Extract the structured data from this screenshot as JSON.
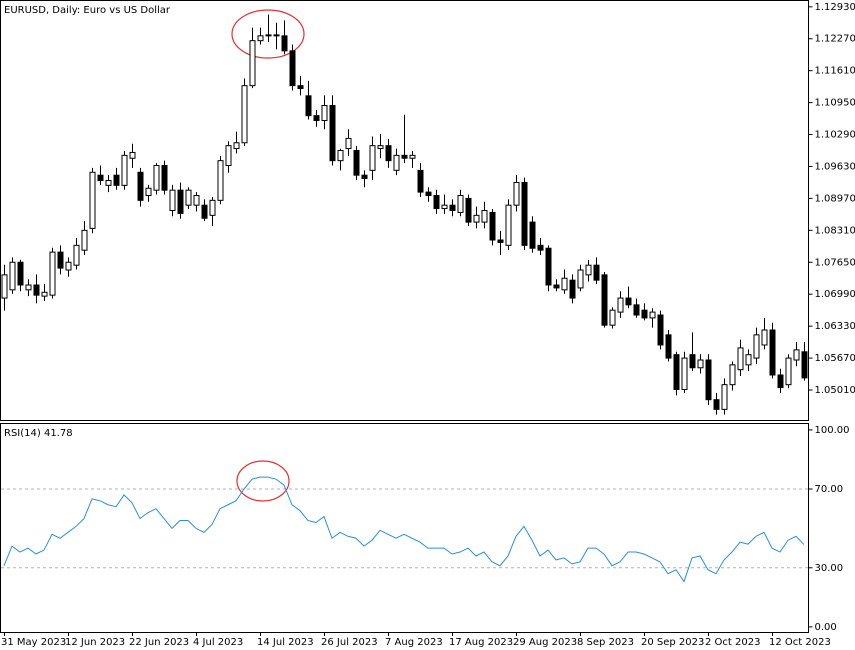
{
  "chart_data": [
    {
      "type": "candlestick",
      "title": "EURUSD, Daily:  Euro vs US Dollar",
      "categories": [
        "31 May 2023",
        null,
        null,
        null,
        null,
        null,
        null,
        null,
        "12 Jun 2023",
        null,
        null,
        null,
        null,
        null,
        null,
        null,
        "22 Jun 2023",
        null,
        null,
        null,
        null,
        null,
        null,
        null,
        "4 Jul 2023",
        null,
        null,
        null,
        null,
        null,
        null,
        null,
        "14 Jul 2023",
        null,
        null,
        null,
        null,
        null,
        null,
        null,
        "26 Jul 2023",
        null,
        null,
        null,
        null,
        null,
        null,
        null,
        "7 Aug 2023",
        null,
        null,
        null,
        null,
        null,
        null,
        null,
        "17 Aug 2023",
        null,
        null,
        null,
        null,
        null,
        null,
        null,
        "29 Aug 2023",
        null,
        null,
        null,
        null,
        null,
        null,
        null,
        "8 Sep 2023",
        null,
        null,
        null,
        null,
        null,
        null,
        null,
        "20 Sep 2023",
        null,
        null,
        null,
        null,
        null,
        null,
        null,
        "2 Oct 2023",
        null,
        null,
        null,
        null,
        null,
        null,
        null,
        "12 Oct 2023",
        null,
        null,
        null,
        null
      ],
      "open": [
        1.0691,
        1.0708,
        1.0765,
        1.0708,
        1.0718,
        1.0695,
        1.0697,
        1.0786,
        1.0749,
        1.0759,
        1.079,
        1.0835,
        1.0945,
        1.0924,
        1.0945,
        1.0924,
        1.098,
        1.0951,
        1.0903,
        1.0914,
        1.0965,
        1.0872,
        1.0914,
        1.0883,
        1.0883,
        1.0883,
        1.0862,
        1.0893,
        1.0965,
        1.1,
        1.1012,
        1.113,
        1.1223,
        1.1233,
        1.1235,
        1.1233,
        1.1202,
        1.113,
        1.1109,
        1.1068,
        1.1058,
        1.1089,
        1.0975,
        1.1,
        1.0996,
        1.0945,
        1.0955,
        1.1,
        1.1006,
        1.0955,
        1.0986,
        1.098,
        1.0955,
        1.091,
        1.0903,
        1.0876,
        1.0883,
        1.0868,
        1.0897,
        1.0848,
        1.0848,
        1.0868,
        1.0811,
        1.08,
        1.0883,
        1.093,
        1.0848,
        1.08,
        1.0794,
        1.0718,
        1.0708,
        1.0728,
        1.0712,
        1.0739,
        1.0759,
        1.0739,
        1.0635,
        1.0662,
        1.0691,
        1.0677,
        1.0666,
        1.065,
        1.0656,
        1.0615,
        1.0574,
        1.0502,
        1.0574,
        1.0547,
        1.0563,
        1.0481,
        1.0461,
        1.0512,
        1.0543,
        1.0553,
        1.0567,
        1.0594,
        1.0625,
        1.0532,
        1.0512,
        1.0563,
        1.058
      ],
      "high": [
        1.076,
        1.0775,
        1.077,
        1.073,
        1.074,
        1.072,
        1.0795,
        1.08,
        1.0775,
        1.0815,
        1.085,
        1.096,
        1.0965,
        1.0945,
        1.096,
        1.0995,
        1.101,
        1.096,
        1.0925,
        1.097,
        1.0975,
        1.0925,
        1.093,
        1.092,
        1.091,
        1.0895,
        1.09,
        1.0985,
        1.1015,
        1.1035,
        1.1145,
        1.125,
        1.125,
        1.1277,
        1.126,
        1.1265,
        1.1215,
        1.115,
        1.114,
        1.108,
        1.111,
        1.111,
        1.1,
        1.104,
        1.1005,
        1.0955,
        1.1025,
        1.103,
        1.102,
        1.1,
        1.107,
        1.0995,
        1.097,
        1.092,
        1.0915,
        1.0905,
        1.0895,
        1.0915,
        1.0905,
        1.088,
        1.089,
        1.0875,
        1.083,
        1.0895,
        1.0945,
        1.094,
        1.086,
        1.0815,
        1.08,
        1.073,
        1.075,
        1.074,
        1.076,
        1.077,
        1.0775,
        1.0745,
        1.0672,
        1.0705,
        1.0715,
        1.069,
        1.068,
        1.067,
        1.0665,
        1.0625,
        1.058,
        1.058,
        1.062,
        1.0575,
        1.0575,
        1.0495,
        1.0525,
        1.056,
        1.0605,
        1.0585,
        1.063,
        1.065,
        1.064,
        1.0545,
        1.0575,
        1.06,
        1.06
      ],
      "low": [
        1.0665,
        1.07,
        1.0705,
        1.0695,
        1.068,
        1.0685,
        1.069,
        1.074,
        1.0735,
        1.075,
        1.078,
        1.0825,
        1.0925,
        1.091,
        1.0915,
        1.0915,
        1.096,
        1.088,
        1.089,
        1.0905,
        1.0905,
        1.086,
        1.0855,
        1.0875,
        1.087,
        1.085,
        1.084,
        1.0885,
        1.095,
        1.099,
        1.1005,
        1.1125,
        1.1215,
        1.122,
        1.1205,
        1.1195,
        1.112,
        1.111,
        1.106,
        1.1045,
        1.104,
        1.0965,
        1.0955,
        1.0985,
        1.0935,
        1.092,
        1.0935,
        1.098,
        1.096,
        1.0945,
        1.097,
        1.096,
        1.09,
        1.089,
        1.0865,
        1.0865,
        1.086,
        1.086,
        1.084,
        1.0835,
        1.0835,
        1.08,
        1.078,
        1.079,
        1.087,
        1.079,
        1.0785,
        1.078,
        1.0705,
        1.0705,
        1.07,
        1.068,
        1.0705,
        1.0725,
        1.072,
        1.063,
        1.0628,
        1.065,
        1.067,
        1.065,
        1.0645,
        1.063,
        1.0585,
        1.056,
        1.049,
        1.0495,
        1.054,
        1.0535,
        1.047,
        1.045,
        1.045,
        1.05,
        1.053,
        1.054,
        1.0555,
        1.0585,
        1.0525,
        1.0495,
        1.0505,
        1.055,
        1.052
      ],
      "close": [
        1.0739,
        1.0765,
        1.0718,
        1.0718,
        1.0697,
        1.0703,
        1.0786,
        1.0753,
        1.0765,
        1.08,
        1.0831,
        1.0951,
        1.0934,
        1.0934,
        1.0924,
        1.0986,
        1.0992,
        1.0893,
        1.0918,
        1.0965,
        1.0914,
        1.0914,
        1.0866,
        1.0914,
        1.0903,
        1.0856,
        1.0893,
        1.0975,
        1.1006,
        1.1012,
        1.113,
        1.1223,
        1.1233,
        1.1235,
        1.1233,
        1.1202,
        1.113,
        1.1124,
        1.1068,
        1.1058,
        1.1089,
        1.0975,
        1.0996,
        1.1021,
        1.0945,
        1.0938,
        1.1006,
        1.1006,
        1.0975,
        1.0986,
        1.098,
        1.0986,
        1.091,
        1.0903,
        1.0876,
        1.0883,
        1.0872,
        1.0903,
        1.0848,
        1.0862,
        1.0872,
        1.0811,
        1.0806,
        1.0883,
        1.093,
        1.08,
        1.0794,
        1.079,
        1.0718,
        1.0712,
        1.0732,
        1.0691,
        1.0749,
        1.0759,
        1.0728,
        1.0635,
        1.0666,
        1.0691,
        1.0677,
        1.0656,
        1.065,
        1.0662,
        1.0594,
        1.0567,
        1.0502,
        1.0567,
        1.0547,
        1.0563,
        1.0481,
        1.0461,
        1.0512,
        1.0553,
        1.0588,
        1.0574,
        1.0615,
        1.0625,
        1.0532,
        1.0506,
        1.0567,
        1.0584,
        1.0526
      ],
      "up_color": "#ffffff",
      "down_color": "#000000",
      "ylim": [
        1.0439,
        1.1305
      ],
      "yticks": [
        {
          "value": 1.1293,
          "label": "1.12930"
        },
        {
          "value": 1.1227,
          "label": "1.12270"
        },
        {
          "value": 1.1161,
          "label": "1.11610"
        },
        {
          "value": 1.1095,
          "label": "1.10950"
        },
        {
          "value": 1.1029,
          "label": "1.10290"
        },
        {
          "value": 1.0963,
          "label": "1.09630"
        },
        {
          "value": 1.0897,
          "label": "1.08970"
        },
        {
          "value": 1.0831,
          "label": "1.08310"
        },
        {
          "value": 1.0765,
          "label": "1.07650"
        },
        {
          "value": 1.0699,
          "label": "1.06990"
        },
        {
          "value": 1.0633,
          "label": "1.06330"
        },
        {
          "value": 1.0567,
          "label": "1.05670"
        },
        {
          "value": 1.0501,
          "label": "1.05010"
        }
      ]
    },
    {
      "type": "line",
      "title": "RSI(14) 41.78",
      "color": "#2a8fd8",
      "values": [
        31,
        41,
        38,
        40,
        37,
        39,
        47,
        45,
        48,
        51,
        55,
        65,
        64,
        62,
        61,
        67,
        63,
        55,
        58,
        60,
        55,
        50,
        54,
        54,
        50,
        48,
        52,
        60,
        62,
        64,
        70,
        75,
        76,
        76,
        75,
        72,
        62,
        59,
        54,
        53,
        56,
        45,
        48,
        46,
        45,
        41,
        44,
        49,
        47,
        45,
        47,
        45,
        43,
        40,
        40,
        40,
        37,
        38,
        40,
        36,
        38,
        33,
        31,
        36,
        46,
        51,
        44,
        36,
        39,
        34,
        35,
        32,
        33,
        40,
        40,
        37,
        31,
        33,
        38,
        38,
        37,
        35,
        33,
        27,
        29,
        23,
        35,
        36,
        29,
        27,
        34,
        38,
        43,
        42,
        46,
        48,
        40,
        38,
        44,
        46,
        41.78
      ],
      "levels": [
        70,
        30
      ],
      "ylim": [
        -2.6,
        103
      ],
      "yticks": [
        {
          "value": 100,
          "label": "100.00"
        },
        {
          "value": 70,
          "label": "70.00"
        },
        {
          "value": 30,
          "label": "30.00"
        },
        {
          "value": 0,
          "label": "0.00"
        }
      ]
    }
  ]
}
